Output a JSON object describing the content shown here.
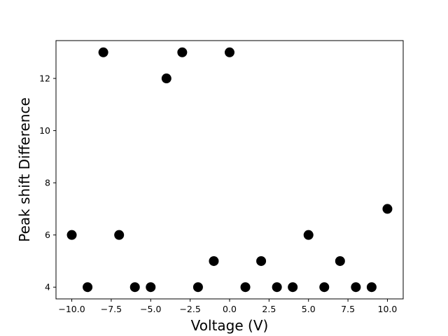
{
  "chart_data": {
    "type": "scatter",
    "title": "",
    "xlabel": "Voltage (V)",
    "ylabel": "Peak shift Difference",
    "xlim": [
      -11,
      11
    ],
    "ylim": [
      3.55,
      13.45
    ],
    "xticks": [
      -10.0,
      -7.5,
      -5.0,
      -2.5,
      0.0,
      2.5,
      5.0,
      7.5,
      10.0
    ],
    "xtick_labels": [
      "−10.0",
      "−7.5",
      "−5.0",
      "−2.5",
      "0.0",
      "2.5",
      "5.0",
      "7.5",
      "10.0"
    ],
    "yticks": [
      4,
      6,
      8,
      10,
      12
    ],
    "ytick_labels": [
      "4",
      "6",
      "8",
      "10",
      "12"
    ],
    "grid": false,
    "marker_color": "#000000",
    "series": [
      {
        "x": [
          -10,
          -9,
          -8,
          -7,
          -6,
          -5,
          -4,
          -3,
          -2,
          -1,
          0,
          1,
          2,
          3,
          4,
          5,
          6,
          7,
          8,
          9,
          10
        ],
        "y": [
          6,
          4,
          13,
          6,
          4,
          4,
          12,
          13,
          4,
          5,
          13,
          4,
          5,
          4,
          4,
          6,
          4,
          5,
          4,
          4,
          7
        ]
      }
    ]
  }
}
